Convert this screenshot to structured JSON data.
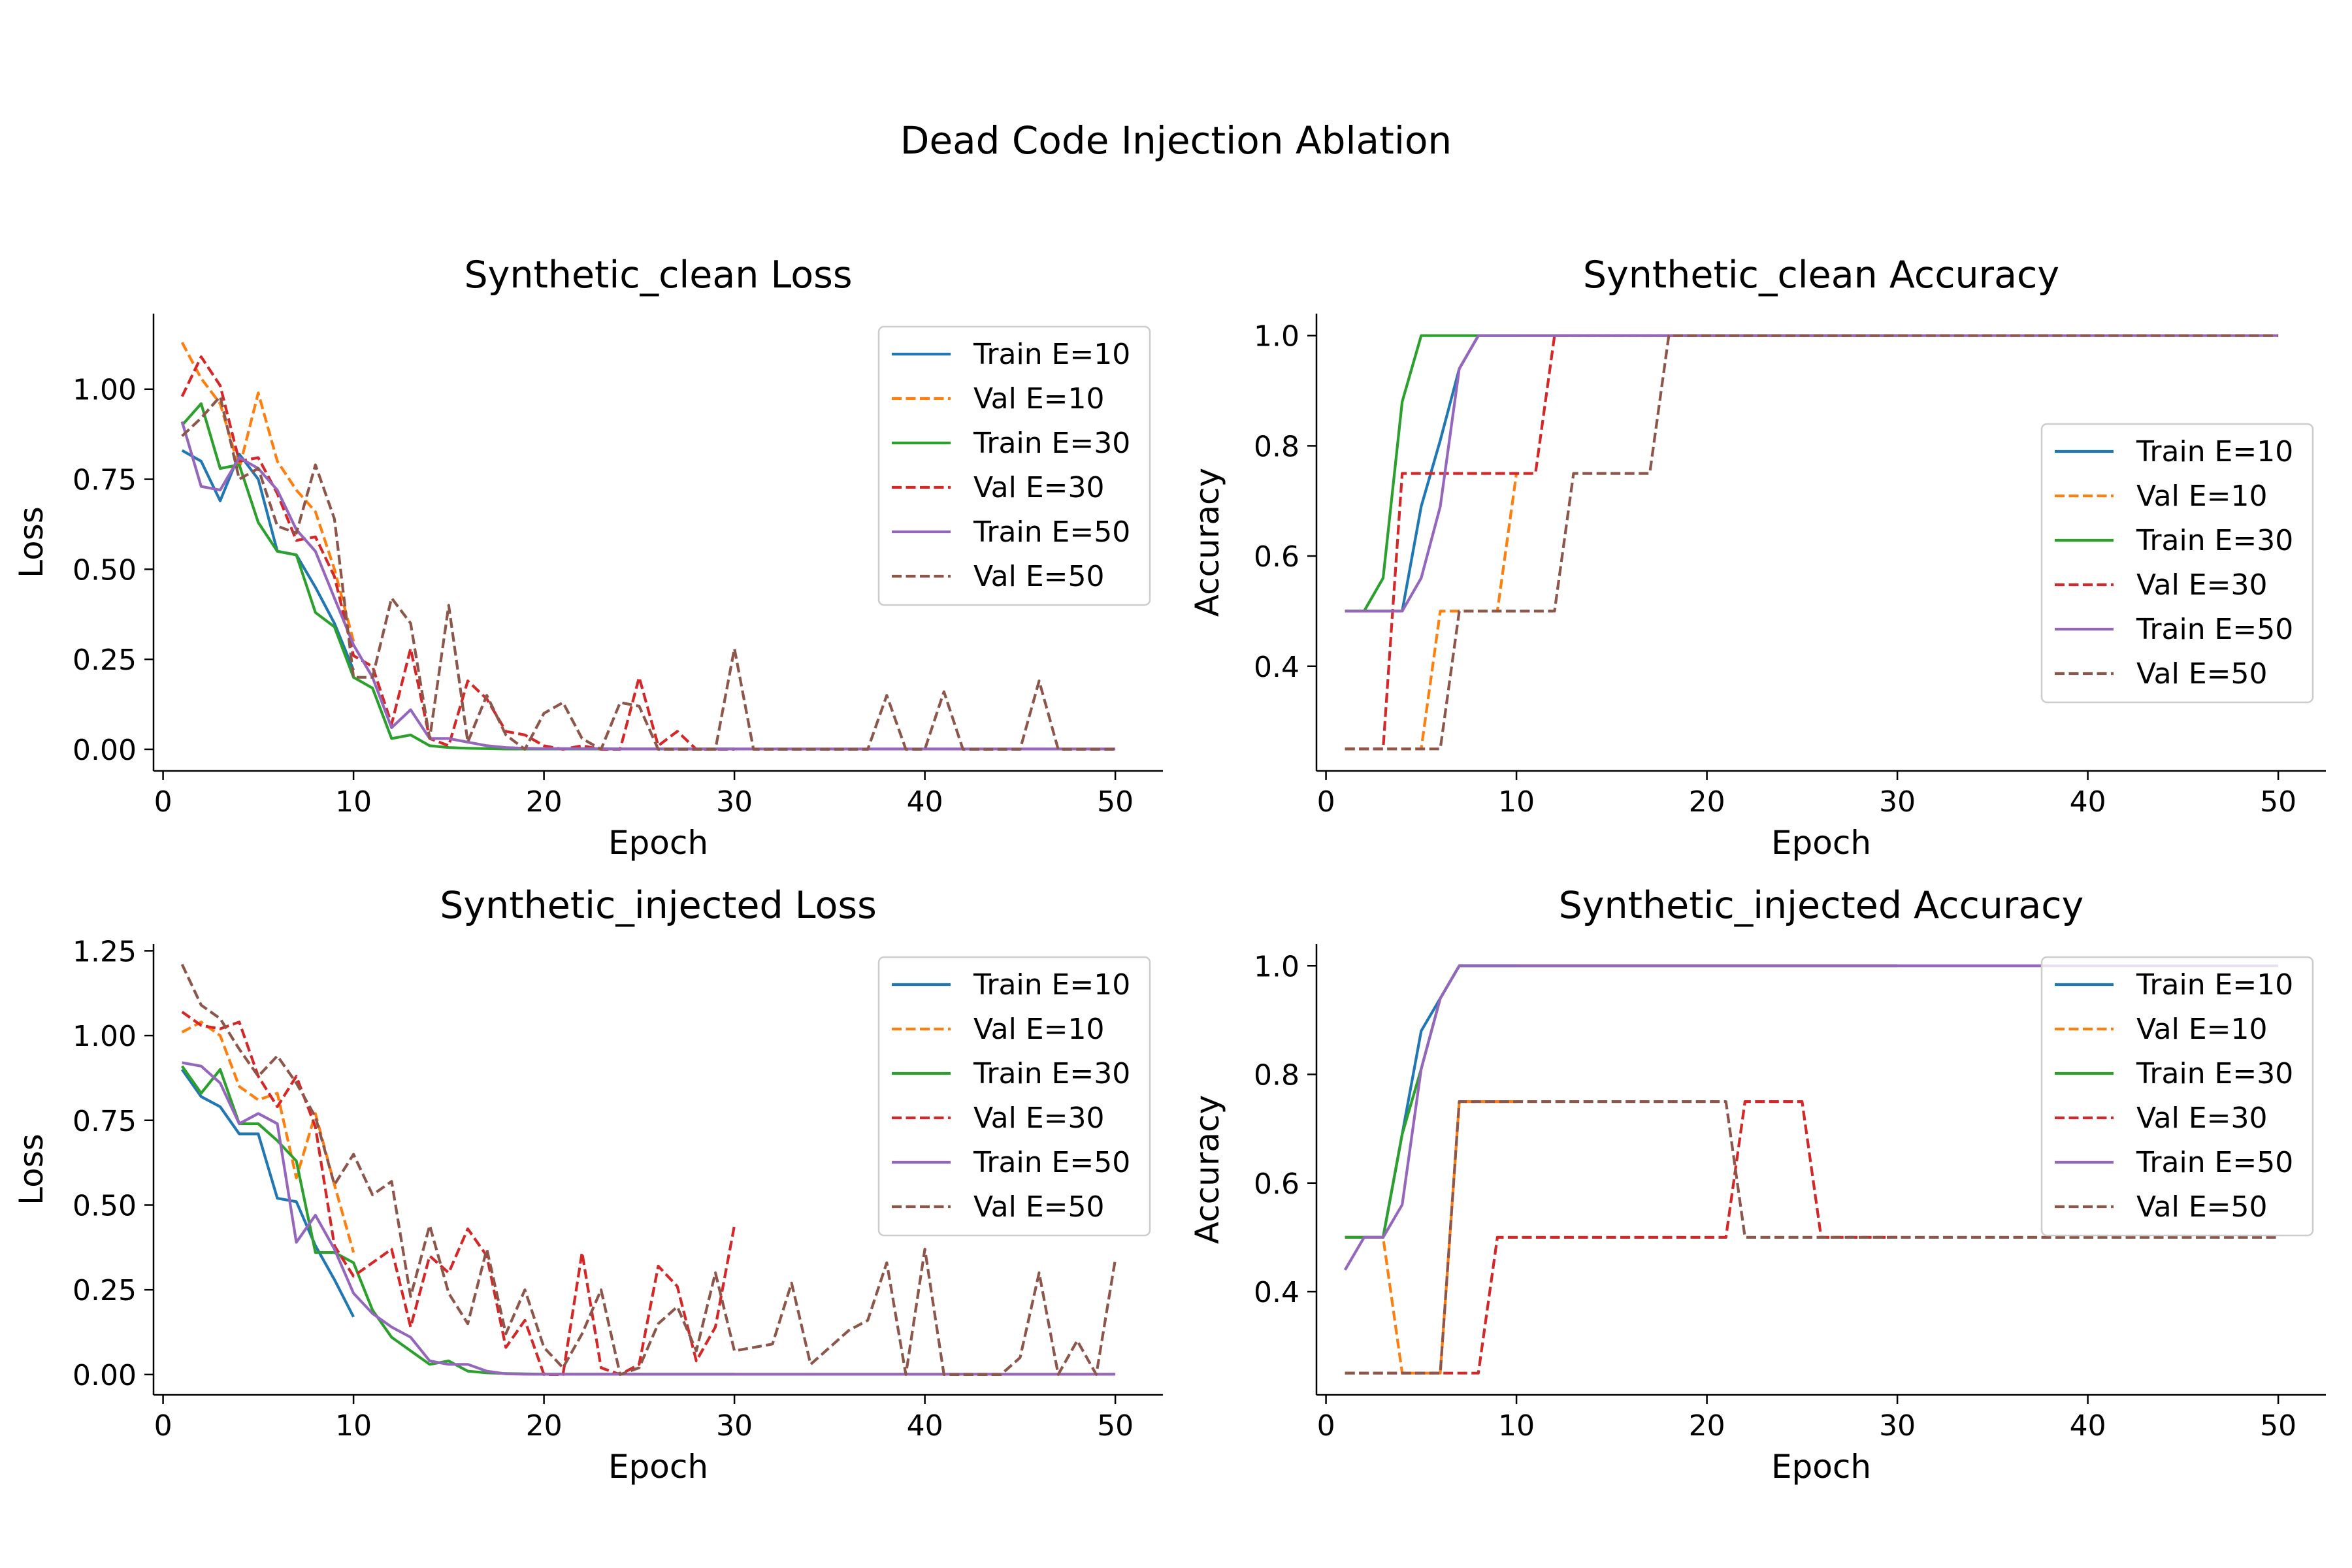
{
  "figure": {
    "suptitle": "Dead Code Injection Ablation"
  },
  "colors": {
    "C0": "#1f77b4",
    "C1": "#ff7f0e",
    "C2": "#2ca02c",
    "C3": "#d62728",
    "C4": "#9467bd",
    "C5": "#8c564b"
  },
  "chart_data": [
    {
      "type": "line",
      "title": "Synthetic_clean Loss",
      "xlabel": "Epoch",
      "ylabel": "Loss",
      "xlim": [
        -0.5,
        52.5
      ],
      "ylim": [
        -0.06,
        1.21
      ],
      "xticks": [
        0,
        10,
        20,
        30,
        40,
        50
      ],
      "xtick_labels": [
        "0",
        "10",
        "20",
        "30",
        "40",
        "50"
      ],
      "yticks": [
        0,
        0.25,
        0.5,
        0.75,
        1.0
      ],
      "ytick_labels": [
        "0.00",
        "0.25",
        "0.50",
        "0.75",
        "1.00"
      ],
      "legend": "upper right",
      "grid": false,
      "series": [
        {
          "name": "Train E=10",
          "color": "#1f77b4",
          "dash": "solid",
          "x_start": 1,
          "values": [
            0.83,
            0.8,
            0.69,
            0.82,
            0.75,
            0.55,
            0.54,
            0.45,
            0.35,
            0.22
          ]
        },
        {
          "name": "Val E=10",
          "color": "#ff7f0e",
          "dash": "dashed",
          "x_start": 1,
          "values": [
            1.13,
            1.03,
            0.96,
            0.78,
            0.99,
            0.8,
            0.72,
            0.66,
            0.5,
            0.3
          ]
        },
        {
          "name": "Train E=30",
          "color": "#2ca02c",
          "dash": "solid",
          "x_start": 1,
          "values": [
            0.9,
            0.96,
            0.78,
            0.79,
            0.63,
            0.55,
            0.54,
            0.38,
            0.34,
            0.2,
            0.17,
            0.03,
            0.04,
            0.01,
            0.005,
            0.003,
            0.002,
            0.001,
            0.001,
            0.001,
            0.001,
            0.001,
            0.001,
            0.001,
            0.001,
            0.001,
            0.001,
            0.001,
            0.001,
            0.001
          ]
        },
        {
          "name": "Val E=30",
          "color": "#d62728",
          "dash": "dashed",
          "x_start": 1,
          "values": [
            0.98,
            1.09,
            1.01,
            0.8,
            0.81,
            0.71,
            0.58,
            0.59,
            0.48,
            0.26,
            0.23,
            0.07,
            0.28,
            0.03,
            0.01,
            0.19,
            0.14,
            0.05,
            0.04,
            0.01,
            0.0,
            0.01,
            0.0,
            0.0,
            0.2,
            0.01,
            0.05,
            0.0,
            0.0,
            0.0
          ]
        },
        {
          "name": "Train E=50",
          "color": "#9467bd",
          "dash": "solid",
          "x_start": 1,
          "values": [
            0.91,
            0.73,
            0.72,
            0.81,
            0.78,
            0.72,
            0.61,
            0.55,
            0.42,
            0.29,
            0.2,
            0.06,
            0.11,
            0.03,
            0.03,
            0.02,
            0.01,
            0.005,
            0.003,
            0.002,
            0.002,
            0.002,
            0.002,
            0.001,
            0.001,
            0.001,
            0.001,
            0.001,
            0.001,
            0.001,
            0.001,
            0.001,
            0.001,
            0.001,
            0.001,
            0.001,
            0.001,
            0.001,
            0.001,
            0.001,
            0.001,
            0.001,
            0.001,
            0.001,
            0.001,
            0.001,
            0.001,
            0.001,
            0.001,
            0.001
          ]
        },
        {
          "name": "Val E=50",
          "color": "#8c564b",
          "dash": "dashed",
          "x_start": 1,
          "values": [
            0.87,
            0.92,
            0.98,
            0.75,
            0.78,
            0.62,
            0.6,
            0.79,
            0.64,
            0.2,
            0.2,
            0.42,
            0.35,
            0.03,
            0.4,
            0.02,
            0.15,
            0.04,
            0.0,
            0.1,
            0.13,
            0.03,
            0.0,
            0.13,
            0.12,
            0.0,
            0.0,
            0.0,
            0.0,
            0.28,
            0.0,
            0.0,
            0.0,
            0.0,
            0.0,
            0.0,
            0.0,
            0.15,
            0.0,
            0.0,
            0.16,
            0.0,
            0.0,
            0.0,
            0.0,
            0.19,
            0.0,
            0.0,
            0.0,
            0.0
          ]
        }
      ]
    },
    {
      "type": "line",
      "title": "Synthetic_clean Accuracy",
      "xlabel": "Epoch",
      "ylabel": "Accuracy",
      "xlim": [
        -0.5,
        52.5
      ],
      "ylim": [
        0.21,
        1.04
      ],
      "xticks": [
        0,
        10,
        20,
        30,
        40,
        50
      ],
      "xtick_labels": [
        "0",
        "10",
        "20",
        "30",
        "40",
        "50"
      ],
      "yticks": [
        0.4,
        0.6,
        0.8,
        1.0
      ],
      "ytick_labels": [
        "0.4",
        "0.6",
        "0.8",
        "1.0"
      ],
      "legend": "center right",
      "grid": false,
      "series": [
        {
          "name": "Train E=10",
          "color": "#1f77b4",
          "dash": "solid",
          "x_start": 1,
          "values": [
            0.5,
            0.5,
            0.5,
            0.5,
            0.69,
            0.81,
            0.94,
            1.0,
            1.0,
            1.0
          ]
        },
        {
          "name": "Val E=10",
          "color": "#ff7f0e",
          "dash": "dashed",
          "x_start": 1,
          "values": [
            0.25,
            0.25,
            0.25,
            0.25,
            0.25,
            0.5,
            0.5,
            0.5,
            0.5,
            0.75
          ]
        },
        {
          "name": "Train E=30",
          "color": "#2ca02c",
          "dash": "solid",
          "x_start": 1,
          "values": [
            0.5,
            0.5,
            0.56,
            0.88,
            1.0,
            1.0,
            1.0,
            1.0,
            1.0,
            1.0,
            1.0,
            1.0,
            1.0,
            1.0,
            1.0,
            1.0,
            1.0,
            1.0,
            1.0,
            1.0,
            1.0,
            1.0,
            1.0,
            1.0,
            1.0,
            1.0,
            1.0,
            1.0,
            1.0,
            1.0
          ]
        },
        {
          "name": "Val E=30",
          "color": "#d62728",
          "dash": "dashed",
          "x_start": 1,
          "values": [
            0.25,
            0.25,
            0.25,
            0.75,
            0.75,
            0.75,
            0.75,
            0.75,
            0.75,
            0.75,
            0.75,
            1.0,
            1.0,
            1.0,
            1.0,
            1.0,
            1.0,
            1.0,
            1.0,
            1.0,
            1.0,
            1.0,
            1.0,
            1.0,
            1.0,
            1.0,
            1.0,
            1.0,
            1.0,
            1.0
          ]
        },
        {
          "name": "Train E=50",
          "color": "#9467bd",
          "dash": "solid",
          "x_start": 1,
          "values": [
            0.5,
            0.5,
            0.5,
            0.5,
            0.56,
            0.69,
            0.94,
            1.0,
            1.0,
            1.0,
            1.0,
            1.0,
            1.0,
            1.0,
            1.0,
            1.0,
            1.0,
            1.0,
            1.0,
            1.0,
            1.0,
            1.0,
            1.0,
            1.0,
            1.0,
            1.0,
            1.0,
            1.0,
            1.0,
            1.0,
            1.0,
            1.0,
            1.0,
            1.0,
            1.0,
            1.0,
            1.0,
            1.0,
            1.0,
            1.0,
            1.0,
            1.0,
            1.0,
            1.0,
            1.0,
            1.0,
            1.0,
            1.0,
            1.0,
            1.0
          ]
        },
        {
          "name": "Val E=50",
          "color": "#8c564b",
          "dash": "dashed",
          "x_start": 1,
          "values": [
            0.25,
            0.25,
            0.25,
            0.25,
            0.25,
            0.25,
            0.5,
            0.5,
            0.5,
            0.5,
            0.5,
            0.5,
            0.75,
            0.75,
            0.75,
            0.75,
            0.75,
            1.0,
            1.0,
            1.0,
            1.0,
            1.0,
            1.0,
            1.0,
            1.0,
            1.0,
            1.0,
            1.0,
            1.0,
            1.0,
            1.0,
            1.0,
            1.0,
            1.0,
            1.0,
            1.0,
            1.0,
            1.0,
            1.0,
            1.0,
            1.0,
            1.0,
            1.0,
            1.0,
            1.0,
            1.0,
            1.0,
            1.0,
            1.0,
            1.0
          ]
        }
      ]
    },
    {
      "type": "line",
      "title": "Synthetic_injected Loss",
      "xlabel": "Epoch",
      "ylabel": "Loss",
      "xlim": [
        -0.5,
        52.5
      ],
      "ylim": [
        -0.06,
        1.27
      ],
      "xticks": [
        0,
        10,
        20,
        30,
        40,
        50
      ],
      "xtick_labels": [
        "0",
        "10",
        "20",
        "30",
        "40",
        "50"
      ],
      "yticks": [
        0,
        0.25,
        0.5,
        0.75,
        1.0,
        1.25
      ],
      "ytick_labels": [
        "0.00",
        "0.25",
        "0.50",
        "0.75",
        "1.00",
        "1.25"
      ],
      "legend": "upper right",
      "grid": false,
      "series": [
        {
          "name": "Train E=10",
          "color": "#1f77b4",
          "dash": "solid",
          "x_start": 1,
          "values": [
            0.9,
            0.82,
            0.79,
            0.71,
            0.71,
            0.52,
            0.51,
            0.38,
            0.28,
            0.17
          ]
        },
        {
          "name": "Val E=10",
          "color": "#ff7f0e",
          "dash": "dashed",
          "x_start": 1,
          "values": [
            1.01,
            1.04,
            1.0,
            0.85,
            0.81,
            0.83,
            0.58,
            0.77,
            0.56,
            0.36
          ]
        },
        {
          "name": "Train E=30",
          "color": "#2ca02c",
          "dash": "solid",
          "x_start": 1,
          "values": [
            0.91,
            0.83,
            0.9,
            0.74,
            0.74,
            0.69,
            0.63,
            0.36,
            0.36,
            0.33,
            0.19,
            0.11,
            0.07,
            0.03,
            0.04,
            0.01,
            0.005,
            0.003,
            0.002,
            0.001,
            0.001,
            0.001,
            0.001,
            0.001,
            0.001,
            0.001,
            0.001,
            0.001,
            0.001,
            0.001
          ]
        },
        {
          "name": "Val E=30",
          "color": "#d62728",
          "dash": "dashed",
          "x_start": 1,
          "values": [
            1.07,
            1.03,
            1.02,
            1.04,
            0.88,
            0.79,
            0.88,
            0.73,
            0.38,
            0.29,
            0.33,
            0.37,
            0.14,
            0.35,
            0.3,
            0.43,
            0.35,
            0.08,
            0.16,
            0.0,
            0.0,
            0.36,
            0.02,
            0.0,
            0.03,
            0.32,
            0.26,
            0.04,
            0.14,
            0.44
          ]
        },
        {
          "name": "Train E=50",
          "color": "#9467bd",
          "dash": "solid",
          "x_start": 1,
          "values": [
            0.92,
            0.91,
            0.86,
            0.74,
            0.77,
            0.74,
            0.39,
            0.47,
            0.37,
            0.24,
            0.18,
            0.14,
            0.11,
            0.04,
            0.03,
            0.03,
            0.01,
            0.002,
            0.001,
            0.001,
            0.001,
            0.001,
            0.001,
            0.001,
            0.001,
            0.001,
            0.001,
            0.001,
            0.001,
            0.001,
            0.001,
            0.001,
            0.001,
            0.001,
            0.001,
            0.001,
            0.001,
            0.001,
            0.001,
            0.001,
            0.001,
            0.001,
            0.001,
            0.001,
            0.001,
            0.001,
            0.001,
            0.001,
            0.001,
            0.001
          ]
        },
        {
          "name": "Val E=50",
          "color": "#8c564b",
          "dash": "dashed",
          "x_start": 1,
          "values": [
            1.21,
            1.09,
            1.05,
            0.96,
            0.88,
            0.94,
            0.86,
            0.76,
            0.56,
            0.65,
            0.53,
            0.57,
            0.23,
            0.44,
            0.24,
            0.15,
            0.37,
            0.12,
            0.25,
            0.08,
            0.02,
            0.12,
            0.25,
            0.0,
            0.02,
            0.15,
            0.2,
            0.07,
            0.3,
            0.07,
            0.08,
            0.09,
            0.27,
            0.03,
            0.08,
            0.13,
            0.16,
            0.33,
            0.0,
            0.37,
            0.0,
            0.0,
            0.0,
            0.0,
            0.05,
            0.3,
            0.0,
            0.1,
            0.0,
            0.34
          ]
        }
      ]
    },
    {
      "type": "line",
      "title": "Synthetic_injected Accuracy",
      "xlabel": "Epoch",
      "ylabel": "Accuracy",
      "xlim": [
        -0.5,
        52.5
      ],
      "ylim": [
        0.21,
        1.04
      ],
      "xticks": [
        0,
        10,
        20,
        30,
        40,
        50
      ],
      "xtick_labels": [
        "0",
        "10",
        "20",
        "30",
        "40",
        "50"
      ],
      "yticks": [
        0.4,
        0.6,
        0.8,
        1.0
      ],
      "ytick_labels": [
        "0.4",
        "0.6",
        "0.8",
        "1.0"
      ],
      "legend": "upper right",
      "grid": false,
      "series": [
        {
          "name": "Train E=10",
          "color": "#1f77b4",
          "dash": "solid",
          "x_start": 1,
          "values": [
            0.5,
            0.5,
            0.5,
            0.69,
            0.88,
            0.94,
            1.0,
            1.0,
            1.0,
            1.0
          ]
        },
        {
          "name": "Val E=10",
          "color": "#ff7f0e",
          "dash": "dashed",
          "x_start": 1,
          "values": [
            0.5,
            0.5,
            0.5,
            0.25,
            0.25,
            0.25,
            0.75,
            0.75,
            0.75,
            0.75
          ]
        },
        {
          "name": "Train E=30",
          "color": "#2ca02c",
          "dash": "solid",
          "x_start": 1,
          "values": [
            0.5,
            0.5,
            0.5,
            0.69,
            0.81,
            0.94,
            1.0,
            1.0,
            1.0,
            1.0,
            1.0,
            1.0,
            1.0,
            1.0,
            1.0,
            1.0,
            1.0,
            1.0,
            1.0,
            1.0,
            1.0,
            1.0,
            1.0,
            1.0,
            1.0,
            1.0,
            1.0,
            1.0,
            1.0,
            1.0
          ]
        },
        {
          "name": "Val E=30",
          "color": "#d62728",
          "dash": "dashed",
          "x_start": 1,
          "values": [
            0.25,
            0.25,
            0.25,
            0.25,
            0.25,
            0.25,
            0.25,
            0.25,
            0.5,
            0.5,
            0.5,
            0.5,
            0.5,
            0.5,
            0.5,
            0.5,
            0.5,
            0.5,
            0.5,
            0.5,
            0.5,
            0.75,
            0.75,
            0.75,
            0.75,
            0.5,
            0.5,
            0.5,
            0.5,
            0.5
          ]
        },
        {
          "name": "Train E=50",
          "color": "#9467bd",
          "dash": "solid",
          "x_start": 1,
          "values": [
            0.44,
            0.5,
            0.5,
            0.56,
            0.81,
            0.94,
            1.0,
            1.0,
            1.0,
            1.0,
            1.0,
            1.0,
            1.0,
            1.0,
            1.0,
            1.0,
            1.0,
            1.0,
            1.0,
            1.0,
            1.0,
            1.0,
            1.0,
            1.0,
            1.0,
            1.0,
            1.0,
            1.0,
            1.0,
            1.0,
            1.0,
            1.0,
            1.0,
            1.0,
            1.0,
            1.0,
            1.0,
            1.0,
            1.0,
            1.0,
            1.0,
            1.0,
            1.0,
            1.0,
            1.0,
            1.0,
            1.0,
            1.0,
            1.0,
            1.0
          ]
        },
        {
          "name": "Val E=50",
          "color": "#8c564b",
          "dash": "dashed",
          "x_start": 1,
          "values": [
            0.25,
            0.25,
            0.25,
            0.25,
            0.25,
            0.25,
            0.75,
            0.75,
            0.75,
            0.75,
            0.75,
            0.75,
            0.75,
            0.75,
            0.75,
            0.75,
            0.75,
            0.75,
            0.75,
            0.75,
            0.75,
            0.5,
            0.5,
            0.5,
            0.5,
            0.5,
            0.5,
            0.5,
            0.5,
            0.5,
            0.5,
            0.5,
            0.5,
            0.5,
            0.5,
            0.5,
            0.5,
            0.5,
            0.5,
            0.5,
            0.5,
            0.5,
            0.5,
            0.5,
            0.5,
            0.5,
            0.5,
            0.5,
            0.5,
            0.5
          ]
        }
      ]
    }
  ]
}
